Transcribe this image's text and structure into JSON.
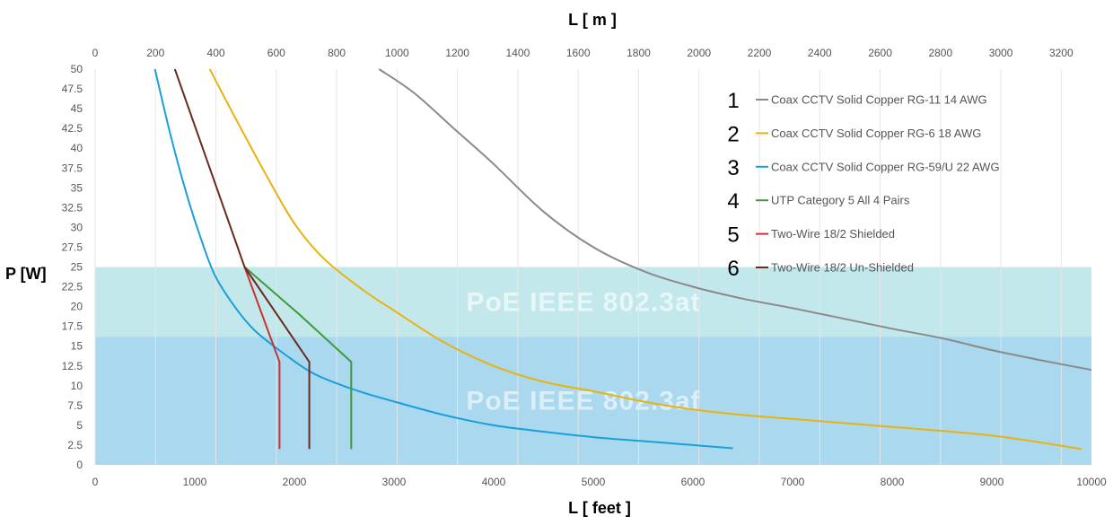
{
  "chart_data": {
    "type": "line",
    "top_axis": {
      "label": "L [ m ]",
      "range": [
        0,
        3300
      ],
      "ticks": [
        "0",
        "200",
        "400",
        "600",
        "800",
        "1000",
        "1200",
        "1400",
        "1600",
        "1800",
        "2000",
        "2200",
        "2400",
        "2600",
        "2800",
        "3000",
        "3200"
      ]
    },
    "xlabel": "L [ feet ]",
    "xlim": [
      0,
      10000
    ],
    "x_ticks": [
      "0",
      "1000",
      "2000",
      "3000",
      "4000",
      "5000",
      "6000",
      "7000",
      "8000",
      "9000",
      "10000"
    ],
    "ylabel": "P [W]",
    "ylim": [
      0,
      50
    ],
    "y_ticks": [
      "0",
      "2.5",
      "5",
      "7.5",
      "10",
      "12.5",
      "15",
      "17.5",
      "20",
      "22.5",
      "25",
      "27.5",
      "30",
      "32.5",
      "35",
      "37.5",
      "40",
      "42.5",
      "45",
      "47.5",
      "50"
    ],
    "bands": [
      {
        "label": "PoE IEEE 802.3af",
        "ymin": 0,
        "ymax": 16.2,
        "color": "#a9d8ef"
      },
      {
        "label": "PoE IEEE 802.3at",
        "ymin": 16.2,
        "ymax": 25,
        "color": "#c3e8ec"
      }
    ],
    "series": [
      {
        "number": "1",
        "name": "Coax  CCTV  Solid Copper RG-11 14 AWG",
        "color": "#8a8a8a",
        "points": [
          [
            2850,
            50
          ],
          [
            3200,
            47
          ],
          [
            3600,
            42.5
          ],
          [
            4000,
            38
          ],
          [
            4500,
            32
          ],
          [
            5000,
            27.5
          ],
          [
            5500,
            24.5
          ],
          [
            6000,
            22.5
          ],
          [
            6500,
            21
          ],
          [
            7000,
            19.8
          ],
          [
            7500,
            18.5
          ],
          [
            8000,
            17.2
          ],
          [
            8500,
            16
          ],
          [
            9000,
            14.5
          ],
          [
            9500,
            13.2
          ],
          [
            10000,
            12
          ]
        ]
      },
      {
        "number": "2",
        "name": "Coax  CCTV  Solid Copper RG-6 18 AWG",
        "color": "#e8b30e",
        "points": [
          [
            1150,
            50
          ],
          [
            1400,
            44
          ],
          [
            1700,
            37
          ],
          [
            2000,
            30.5
          ],
          [
            2300,
            26
          ],
          [
            2700,
            22
          ],
          [
            3000,
            19.5
          ],
          [
            3500,
            15.5
          ],
          [
            4000,
            12.5
          ],
          [
            4500,
            10.5
          ],
          [
            5000,
            9.3
          ],
          [
            5500,
            8
          ],
          [
            6000,
            7
          ],
          [
            6500,
            6.3
          ],
          [
            7000,
            5.8
          ],
          [
            7500,
            5.3
          ],
          [
            8000,
            4.8
          ],
          [
            8500,
            4.3
          ],
          [
            9000,
            3.7
          ],
          [
            9400,
            3
          ],
          [
            9900,
            2
          ]
        ]
      },
      {
        "number": "3",
        "name": "Coax  CCTV  Solid Copper RG-59/U 22 AWG",
        "color": "#1a9fd8",
        "points": [
          [
            600,
            50
          ],
          [
            750,
            42
          ],
          [
            900,
            35
          ],
          [
            1050,
            29
          ],
          [
            1200,
            24
          ],
          [
            1400,
            20
          ],
          [
            1600,
            17
          ],
          [
            1900,
            14
          ],
          [
            2200,
            11.5
          ],
          [
            2600,
            9.5
          ],
          [
            3000,
            8
          ],
          [
            3500,
            6.3
          ],
          [
            4000,
            5
          ],
          [
            4500,
            4.2
          ],
          [
            5000,
            3.5
          ],
          [
            5500,
            3
          ],
          [
            6000,
            2.5
          ],
          [
            6400,
            2.1
          ]
        ]
      },
      {
        "number": "4",
        "name": "UTP Category 5 All 4 Pairs",
        "color": "#3f9a3a",
        "points": [
          [
            1500,
            25
          ],
          [
            2050,
            19
          ],
          [
            2570,
            13
          ],
          [
            2570,
            2
          ]
        ]
      },
      {
        "number": "5",
        "name": "Two-Wire 18/2 Shielded",
        "color": "#c83232",
        "points": [
          [
            1500,
            25
          ],
          [
            1850,
            13
          ],
          [
            1850,
            2
          ]
        ]
      },
      {
        "number": "6",
        "name": "Two-Wire 18/2 Un-Shielded",
        "color": "#6b2a1e",
        "points": [
          [
            800,
            50
          ],
          [
            1500,
            25
          ],
          [
            2150,
            13
          ],
          [
            2150,
            2
          ]
        ]
      }
    ]
  }
}
